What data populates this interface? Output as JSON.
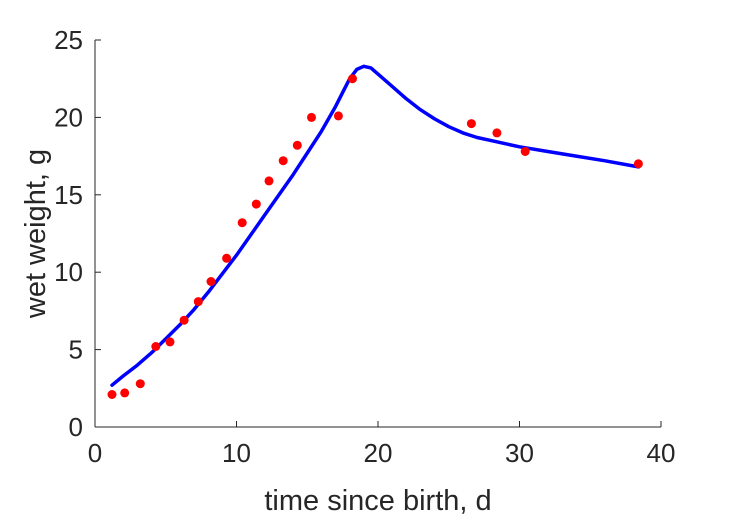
{
  "chart_data": {
    "type": "scatter",
    "title": "",
    "xlabel": "time since birth, d",
    "ylabel": "wet weight, g",
    "xlim": [
      0,
      40
    ],
    "ylim": [
      0,
      25
    ],
    "x_ticks": [
      0,
      10,
      20,
      30,
      40
    ],
    "y_ticks": [
      0,
      5,
      10,
      15,
      20,
      25
    ],
    "x_tick_labels": [
      "0",
      "10",
      "20",
      "30",
      "40"
    ],
    "y_tick_labels": [
      "0",
      "5",
      "10",
      "15",
      "20",
      "25"
    ],
    "grid": false,
    "legend": "none",
    "series": [
      {
        "kind": "points",
        "color": "#ff0000",
        "x": [
          1.2,
          2.1,
          3.2,
          4.3,
          5.3,
          6.3,
          7.3,
          8.2,
          9.3,
          10.4,
          11.4,
          12.3,
          13.3,
          14.3,
          15.3,
          17.2,
          18.2,
          26.6,
          28.4,
          30.4,
          38.4
        ],
        "y": [
          2.1,
          2.2,
          2.8,
          5.2,
          5.5,
          6.9,
          8.1,
          9.4,
          10.9,
          13.2,
          14.4,
          15.9,
          17.2,
          18.2,
          20.0,
          20.1,
          22.5,
          19.6,
          19.0,
          17.8,
          17.0
        ]
      },
      {
        "kind": "line",
        "color": "#0000ff",
        "x": [
          1.2,
          2.0,
          3.0,
          4.0,
          5.0,
          6.0,
          7.0,
          8.0,
          9.0,
          10.0,
          11.0,
          12.0,
          13.0,
          14.0,
          15.0,
          16.0,
          17.0,
          17.5,
          18.0,
          18.5,
          19.0,
          19.5,
          20.0,
          21.0,
          22.0,
          23.0,
          24.0,
          25.0,
          26.0,
          27.0,
          28.0,
          29.0,
          30.0,
          32.0,
          34.0,
          36.0,
          38.4
        ],
        "y": [
          2.7,
          3.3,
          4.0,
          4.8,
          5.7,
          6.6,
          7.6,
          8.7,
          9.9,
          11.1,
          12.4,
          13.7,
          15.0,
          16.3,
          17.7,
          19.1,
          20.7,
          21.6,
          22.5,
          23.1,
          23.3,
          23.2,
          22.8,
          22.0,
          21.2,
          20.5,
          19.9,
          19.4,
          19.0,
          18.7,
          18.5,
          18.3,
          18.1,
          17.8,
          17.5,
          17.2,
          16.8
        ]
      }
    ]
  }
}
